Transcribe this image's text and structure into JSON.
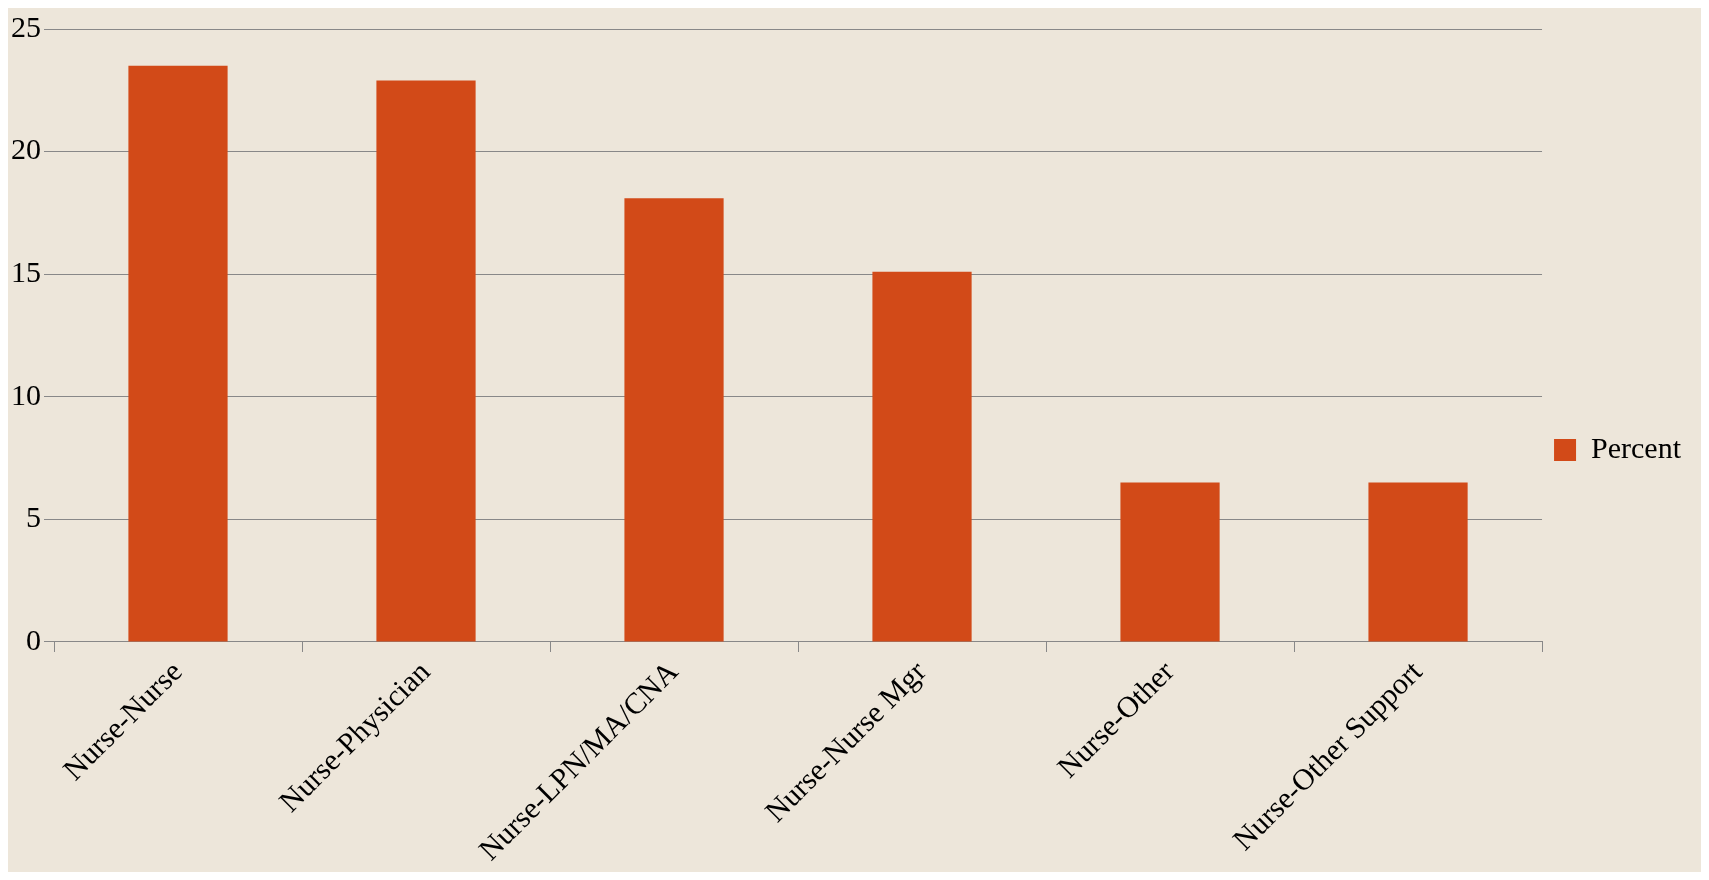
{
  "chart_data": {
    "type": "bar",
    "categories": [
      "Nurse-Nurse",
      "Nurse-Physician",
      "Nurse-LPN/MA/CNA",
      "Nurse-Nurse Mgr",
      "Nurse-Other",
      "Nurse-Other Support"
    ],
    "series": [
      {
        "name": "Percent",
        "color": "#d24a18",
        "values": [
          23.5,
          22.9,
          18.1,
          15.1,
          6.5,
          6.5
        ]
      }
    ],
    "ylim": [
      0,
      25
    ],
    "yticks": [
      0,
      5,
      10,
      15,
      20,
      25
    ],
    "grid": "y",
    "legend": "right"
  }
}
